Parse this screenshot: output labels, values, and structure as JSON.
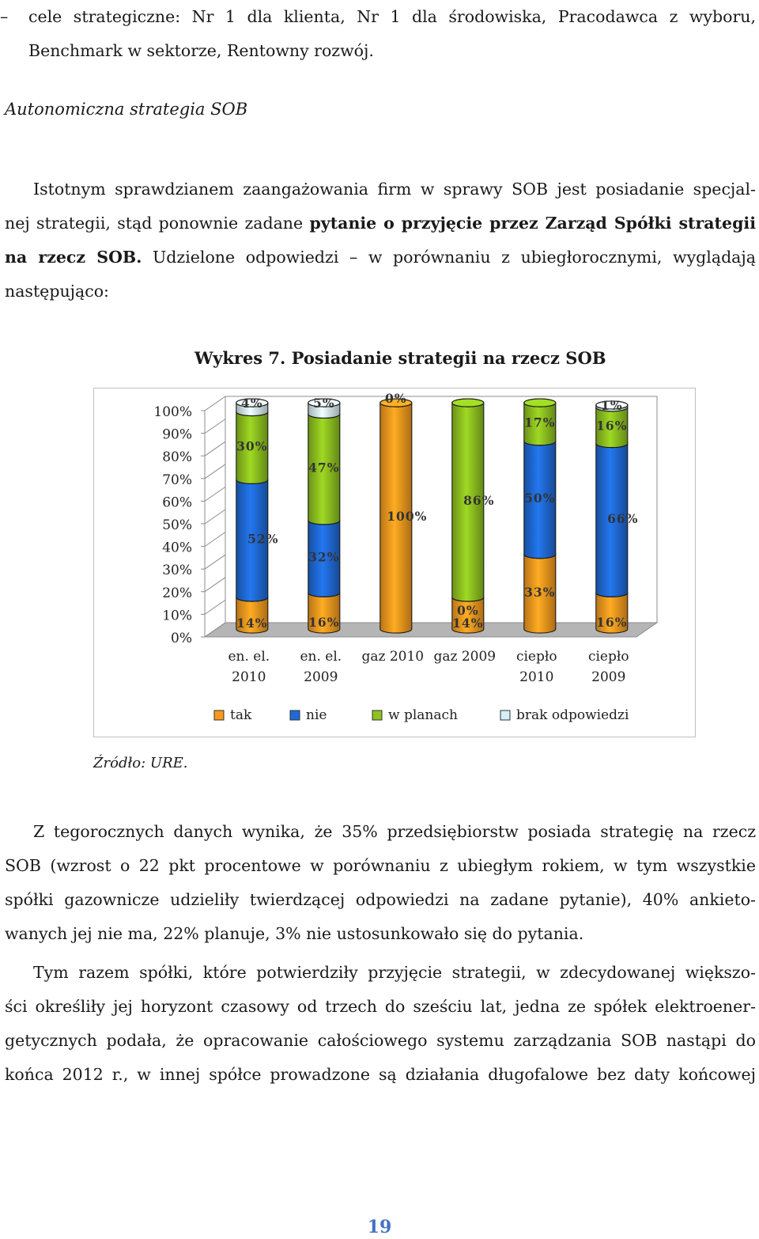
{
  "bullet": {
    "line1": "cele strategiczne: Nr 1 dla klienta, Nr 1 dla środowiska, Pracodawca z wyboru,",
    "line2": "Benchmark w sektorze, Rentowny rozwój."
  },
  "heading": "Autonomiczna strategia SOB",
  "para1": {
    "line1": "Istotnym sprawdzianem zaangażowania firm w sprawy SOB jest posiadanie specjal-",
    "line2_a": "nej strategii, stąd ponownie zadane ",
    "line2_b": "pytanie o przyjęcie przez Zarząd Spółki strategii",
    "line3_a": "na rzecz SOB.",
    "line3_b": " Udzielone odpowiedzi – w porównaniu z ubiegłorocznymi, wyglądają",
    "line4": "następująco:"
  },
  "chart_title": "Wykres 7. Posiadanie strategii na rzecz SOB",
  "chart_data": {
    "type": "bar",
    "stacked": true,
    "categories": [
      [
        "en. el.",
        "2010"
      ],
      [
        "en. el.",
        "2009"
      ],
      [
        "gaz 2010",
        ""
      ],
      [
        "gaz 2009",
        ""
      ],
      [
        "ciepło",
        "2010"
      ],
      [
        "ciepło",
        "2009"
      ]
    ],
    "series": [
      {
        "name": "tak",
        "color": "#f79a1e",
        "values": [
          14,
          16,
          100,
          14,
          33,
          16
        ]
      },
      {
        "name": "nie",
        "color": "#1f6ad6",
        "values": [
          52,
          32,
          0,
          0,
          50,
          66
        ]
      },
      {
        "name": "w planach",
        "color": "#8ec21f",
        "values": [
          30,
          47,
          0,
          86,
          17,
          16
        ]
      },
      {
        "name": "brak odpowiedzi",
        "color": "#d6eef5",
        "values": [
          4,
          5,
          0,
          0,
          0,
          1
        ]
      }
    ],
    "labels": [
      [
        "14%",
        "52%",
        "30%",
        "4%"
      ],
      [
        "16%",
        "32%",
        "47%",
        "5%"
      ],
      [
        "100%",
        "",
        "",
        "0%"
      ],
      [
        "14%",
        "0%",
        "86%",
        ""
      ],
      [
        "33%",
        "50%",
        "17%",
        ""
      ],
      [
        "16%",
        "66%",
        "16%",
        "1%"
      ]
    ],
    "y_ticks": [
      "0%",
      "10%",
      "20%",
      "30%",
      "40%",
      "50%",
      "60%",
      "70%",
      "80%",
      "90%",
      "100%"
    ],
    "ylim": [
      0,
      100
    ],
    "legend_position": "bottom"
  },
  "source": "Źródło: URE.",
  "para2": {
    "line1": "Z tegorocznych danych wynika, że 35% przedsiębiorstw posiada strategię na rzecz",
    "line2": "SOB (wzrost o 22 pkt procentowe w porównaniu z ubiegłym rokiem, w tym wszystkie",
    "line3": "spółki gazownicze udzieliły twierdzącej odpowiedzi na zadane pytanie), 40% ankieto-",
    "line4": "wanych jej nie ma, 22% planuje, 3% nie ustosunkowało się do pytania."
  },
  "para3": {
    "line1": "Tym razem spółki, które potwierdziły przyjęcie strategii, w zdecydowanej większo-",
    "line2": "ści określiły jej horyzont czasowy od trzech do sześciu lat, jedna ze spółek elektroener-",
    "line3": "getycznych podała, że opracowanie całościowego systemu zarządzania SOB nastąpi do",
    "line4": "końca 2012 r., w innej spółce prowadzone są działania długofalowe bez daty końcowej"
  },
  "page_number": "19"
}
